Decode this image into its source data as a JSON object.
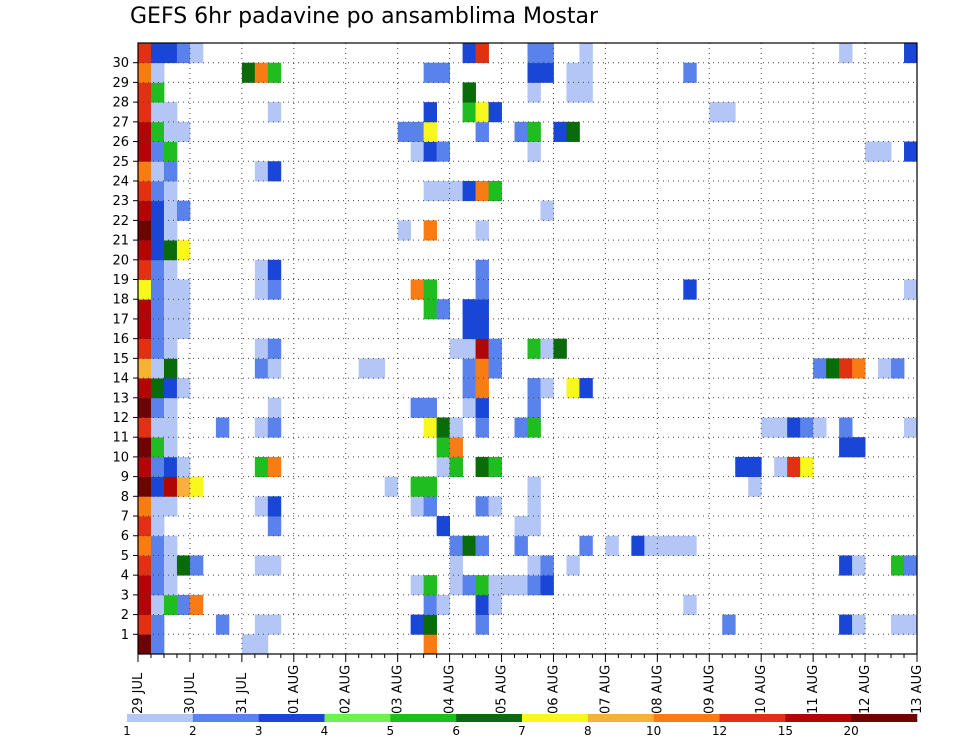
{
  "chart_data": {
    "type": "heatmap",
    "title": "GEFS 6hr padavine po ansamblima Mostar",
    "ylabel": "",
    "xlabel": "",
    "y_ticks": [
      "1",
      "2",
      "3",
      "4",
      "5",
      "6",
      "7",
      "8",
      "9",
      "10",
      "11",
      "12",
      "13",
      "14",
      "15",
      "16",
      "17",
      "18",
      "19",
      "20",
      "21",
      "22",
      "23",
      "24",
      "25",
      "26",
      "27",
      "28",
      "29",
      "30"
    ],
    "x_ticks": [
      "29 JUL",
      "30 JUL",
      "31 JUL",
      "01 AUG",
      "02 AUG",
      "03 AUG",
      "04 AUG",
      "05 AUG",
      "06 AUG",
      "07 AUG",
      "08 AUG",
      "09 AUG",
      "10 AUG",
      "11 AUG",
      "12 AUG",
      "13 AUG"
    ],
    "steps_per_day": 4,
    "total_steps": 60,
    "grid": "dotted",
    "colorbar": {
      "position": "bottom",
      "labels": [
        "1",
        "2",
        "3",
        "4",
        "5",
        "6",
        "7",
        "8",
        "10",
        "12",
        "15",
        "20"
      ],
      "colors": [
        "#b3c6f5",
        "#5a82ec",
        "#1a46d8",
        "#72f053",
        "#1fbd1f",
        "#096b09",
        "#f8f81f",
        "#f8b03a",
        "#f87c13",
        "#e03213",
        "#b00606",
        "#6e0303"
      ]
    },
    "cells_encoding": "member: [step, level] ; step = 6h index from 29 JUL 00z ; level = colorbar bin index 0..11",
    "cells": {
      "30": [
        [
          0,
          9
        ],
        [
          1,
          2
        ],
        [
          2,
          2
        ],
        [
          3,
          1
        ],
        [
          4,
          0
        ],
        [
          25,
          2
        ],
        [
          26,
          9
        ],
        [
          30,
          1
        ],
        [
          31,
          1
        ],
        [
          34,
          0
        ],
        [
          54,
          0
        ],
        [
          59,
          2
        ]
      ],
      "29": [
        [
          0,
          8
        ],
        [
          1,
          0
        ],
        [
          8,
          5
        ],
        [
          9,
          8
        ],
        [
          10,
          4
        ],
        [
          22,
          1
        ],
        [
          23,
          1
        ],
        [
          30,
          2
        ],
        [
          31,
          2
        ],
        [
          33,
          0
        ],
        [
          34,
          0
        ],
        [
          42,
          1
        ]
      ],
      "28": [
        [
          0,
          9
        ],
        [
          1,
          4
        ],
        [
          25,
          5
        ],
        [
          30,
          0
        ],
        [
          33,
          0
        ],
        [
          34,
          0
        ]
      ],
      "27": [
        [
          0,
          9
        ],
        [
          1,
          0
        ],
        [
          2,
          0
        ],
        [
          10,
          0
        ],
        [
          22,
          2
        ],
        [
          25,
          4
        ],
        [
          26,
          6
        ],
        [
          27,
          2
        ],
        [
          44,
          0
        ],
        [
          45,
          0
        ]
      ],
      "26": [
        [
          0,
          10
        ],
        [
          1,
          4
        ],
        [
          2,
          0
        ],
        [
          3,
          0
        ],
        [
          20,
          1
        ],
        [
          21,
          1
        ],
        [
          22,
          6
        ],
        [
          26,
          1
        ],
        [
          29,
          1
        ],
        [
          30,
          4
        ],
        [
          32,
          2
        ],
        [
          33,
          5
        ]
      ],
      "25": [
        [
          0,
          10
        ],
        [
          1,
          1
        ],
        [
          2,
          4
        ],
        [
          21,
          0
        ],
        [
          22,
          2
        ],
        [
          23,
          1
        ],
        [
          30,
          0
        ],
        [
          56,
          0
        ],
        [
          57,
          0
        ],
        [
          59,
          2
        ]
      ],
      "24": [
        [
          0,
          8
        ],
        [
          1,
          0
        ],
        [
          2,
          1
        ],
        [
          9,
          0
        ],
        [
          10,
          2
        ]
      ],
      "23": [
        [
          0,
          9
        ],
        [
          1,
          1
        ],
        [
          2,
          0
        ],
        [
          22,
          0
        ],
        [
          23,
          0
        ],
        [
          24,
          0
        ],
        [
          25,
          2
        ],
        [
          26,
          8
        ],
        [
          27,
          4
        ]
      ],
      "22": [
        [
          0,
          10
        ],
        [
          1,
          2
        ],
        [
          2,
          0
        ],
        [
          3,
          1
        ],
        [
          31,
          0
        ]
      ],
      "21": [
        [
          0,
          11
        ],
        [
          1,
          2
        ],
        [
          2,
          0
        ],
        [
          20,
          0
        ],
        [
          22,
          8
        ],
        [
          26,
          0
        ]
      ],
      "20": [
        [
          0,
          10
        ],
        [
          1,
          2
        ],
        [
          2,
          5
        ],
        [
          3,
          6
        ]
      ],
      "19": [
        [
          0,
          9
        ],
        [
          1,
          1
        ],
        [
          2,
          0
        ],
        [
          9,
          0
        ],
        [
          10,
          2
        ],
        [
          26,
          1
        ]
      ],
      "18": [
        [
          0,
          6
        ],
        [
          1,
          1
        ],
        [
          2,
          0
        ],
        [
          3,
          0
        ],
        [
          9,
          0
        ],
        [
          10,
          1
        ],
        [
          21,
          8
        ],
        [
          22,
          4
        ],
        [
          26,
          1
        ],
        [
          42,
          2
        ],
        [
          59,
          0
        ]
      ],
      "17": [
        [
          0,
          10
        ],
        [
          1,
          1
        ],
        [
          2,
          0
        ],
        [
          3,
          0
        ],
        [
          22,
          4
        ],
        [
          23,
          1
        ],
        [
          25,
          2
        ],
        [
          26,
          2
        ]
      ],
      "16": [
        [
          0,
          10
        ],
        [
          1,
          1
        ],
        [
          2,
          0
        ],
        [
          3,
          0
        ],
        [
          25,
          2
        ],
        [
          26,
          2
        ]
      ],
      "15": [
        [
          0,
          9
        ],
        [
          1,
          1
        ],
        [
          2,
          0
        ],
        [
          9,
          0
        ],
        [
          10,
          1
        ],
        [
          24,
          0
        ],
        [
          25,
          0
        ],
        [
          26,
          10
        ],
        [
          27,
          1
        ],
        [
          30,
          4
        ],
        [
          31,
          0
        ],
        [
          32,
          5
        ]
      ],
      "14": [
        [
          0,
          7
        ],
        [
          1,
          0
        ],
        [
          2,
          5
        ],
        [
          9,
          1
        ],
        [
          10,
          0
        ],
        [
          17,
          0
        ],
        [
          18,
          0
        ],
        [
          25,
          1
        ],
        [
          26,
          8
        ],
        [
          27,
          1
        ],
        [
          52,
          1
        ],
        [
          53,
          5
        ],
        [
          54,
          9
        ],
        [
          55,
          8
        ],
        [
          57,
          0
        ],
        [
          58,
          1
        ]
      ],
      "13": [
        [
          0,
          10
        ],
        [
          1,
          5
        ],
        [
          2,
          2
        ],
        [
          3,
          0
        ],
        [
          25,
          1
        ],
        [
          26,
          8
        ],
        [
          30,
          1
        ],
        [
          31,
          0
        ],
        [
          33,
          6
        ],
        [
          34,
          2
        ]
      ],
      "12": [
        [
          0,
          11
        ],
        [
          1,
          1
        ],
        [
          2,
          0
        ],
        [
          10,
          0
        ],
        [
          21,
          1
        ],
        [
          22,
          1
        ],
        [
          25,
          0
        ],
        [
          26,
          2
        ],
        [
          30,
          1
        ]
      ],
      "11": [
        [
          0,
          9
        ],
        [
          1,
          0
        ],
        [
          2,
          0
        ],
        [
          6,
          1
        ],
        [
          9,
          0
        ],
        [
          10,
          1
        ],
        [
          22,
          6
        ],
        [
          23,
          5
        ],
        [
          24,
          0
        ],
        [
          26,
          1
        ],
        [
          29,
          1
        ],
        [
          30,
          4
        ],
        [
          48,
          0
        ],
        [
          49,
          0
        ],
        [
          50,
          2
        ],
        [
          51,
          1
        ],
        [
          52,
          0
        ],
        [
          54,
          1
        ],
        [
          59,
          0
        ]
      ],
      "10": [
        [
          0,
          11
        ],
        [
          1,
          4
        ],
        [
          2,
          0
        ],
        [
          23,
          4
        ],
        [
          24,
          8
        ],
        [
          54,
          2
        ],
        [
          55,
          2
        ]
      ],
      "9": [
        [
          0,
          10
        ],
        [
          1,
          1
        ],
        [
          2,
          2
        ],
        [
          3,
          0
        ],
        [
          9,
          4
        ],
        [
          10,
          8
        ],
        [
          23,
          0
        ],
        [
          24,
          4
        ],
        [
          26,
          5
        ],
        [
          27,
          4
        ],
        [
          46,
          2
        ],
        [
          47,
          2
        ],
        [
          49,
          0
        ],
        [
          50,
          9
        ],
        [
          51,
          6
        ]
      ],
      "8": [
        [
          0,
          11
        ],
        [
          1,
          2
        ],
        [
          2,
          10
        ],
        [
          3,
          7
        ],
        [
          4,
          6
        ],
        [
          19,
          0
        ],
        [
          21,
          4
        ],
        [
          22,
          4
        ],
        [
          30,
          0
        ],
        [
          47,
          0
        ]
      ],
      "7": [
        [
          0,
          8
        ],
        [
          1,
          0
        ],
        [
          2,
          0
        ],
        [
          9,
          0
        ],
        [
          10,
          2
        ],
        [
          21,
          0
        ],
        [
          22,
          1
        ],
        [
          26,
          1
        ],
        [
          27,
          0
        ],
        [
          30,
          0
        ]
      ],
      "6": [
        [
          0,
          9
        ],
        [
          1,
          0
        ],
        [
          10,
          1
        ],
        [
          23,
          2
        ],
        [
          29,
          0
        ],
        [
          30,
          0
        ]
      ],
      "5": [
        [
          0,
          8
        ],
        [
          1,
          1
        ],
        [
          2,
          0
        ],
        [
          24,
          1
        ],
        [
          25,
          5
        ],
        [
          26,
          1
        ],
        [
          29,
          1
        ],
        [
          34,
          1
        ],
        [
          36,
          0
        ],
        [
          38,
          2
        ],
        [
          39,
          0
        ],
        [
          40,
          0
        ],
        [
          41,
          0
        ],
        [
          42,
          0
        ]
      ],
      "4": [
        [
          0,
          9
        ],
        [
          1,
          1
        ],
        [
          2,
          0
        ],
        [
          3,
          5
        ],
        [
          4,
          1
        ],
        [
          9,
          0
        ],
        [
          10,
          0
        ],
        [
          24,
          0
        ],
        [
          30,
          0
        ],
        [
          31,
          1
        ],
        [
          33,
          0
        ],
        [
          54,
          2
        ],
        [
          55,
          0
        ],
        [
          58,
          4
        ],
        [
          59,
          1
        ]
      ],
      "3": [
        [
          0,
          10
        ],
        [
          1,
          1
        ],
        [
          2,
          0
        ],
        [
          21,
          0
        ],
        [
          22,
          4
        ],
        [
          24,
          0
        ],
        [
          25,
          1
        ],
        [
          26,
          4
        ],
        [
          27,
          0
        ],
        [
          28,
          0
        ],
        [
          29,
          0
        ],
        [
          30,
          1
        ],
        [
          31,
          2
        ]
      ],
      "2": [
        [
          0,
          10
        ],
        [
          1,
          0
        ],
        [
          2,
          4
        ],
        [
          3,
          1
        ],
        [
          4,
          8
        ],
        [
          22,
          1
        ],
        [
          23,
          0
        ],
        [
          26,
          2
        ],
        [
          27,
          0
        ],
        [
          42,
          0
        ]
      ],
      "1": [
        [
          0,
          9
        ],
        [
          1,
          1
        ],
        [
          6,
          1
        ],
        [
          9,
          0
        ],
        [
          10,
          0
        ],
        [
          21,
          2
        ],
        [
          22,
          5
        ],
        [
          26,
          1
        ],
        [
          45,
          1
        ],
        [
          54,
          2
        ],
        [
          55,
          0
        ],
        [
          58,
          0
        ],
        [
          59,
          0
        ]
      ],
      "0": [
        [
          0,
          11
        ],
        [
          1,
          1
        ],
        [
          8,
          0
        ],
        [
          9,
          0
        ],
        [
          22,
          8
        ]
      ]
    }
  }
}
